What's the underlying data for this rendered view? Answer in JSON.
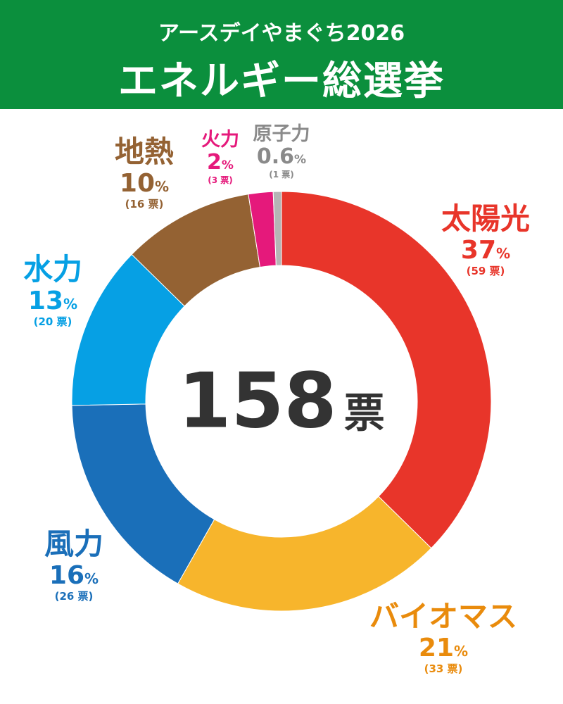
{
  "header": {
    "subtitle": "アースデイやまぐち2026",
    "title": "エネルギー総選挙"
  },
  "center": {
    "total": "158",
    "unit": "票"
  },
  "chart_data": {
    "type": "pie",
    "title": "エネルギー総選挙",
    "total_votes": 158,
    "categories": [
      "太陽光",
      "バイオマス",
      "風力",
      "水力",
      "地熱",
      "火力",
      "原子力"
    ],
    "values": [
      59,
      33,
      26,
      20,
      16,
      3,
      1
    ],
    "percents": [
      "37",
      "21",
      "16",
      "13",
      "10",
      "2",
      "0.6"
    ],
    "vote_labels": [
      "(59 票)",
      "(33 票)",
      "(26 票)",
      "(20 票)",
      "(16 票)",
      "(3 票)",
      "(1 票)"
    ],
    "percent_unit": "%",
    "colors": [
      "#e8352a",
      "#f7b52c",
      "#1a6fb9",
      "#06a0e4",
      "#946233",
      "#e5197b",
      "#b5b5b5"
    ],
    "label_colors": [
      "#e8352a",
      "#e98b0c",
      "#1a6fb9",
      "#06a0e4",
      "#946233",
      "#e5197b",
      "#8a8a8a"
    ],
    "donut": true
  }
}
